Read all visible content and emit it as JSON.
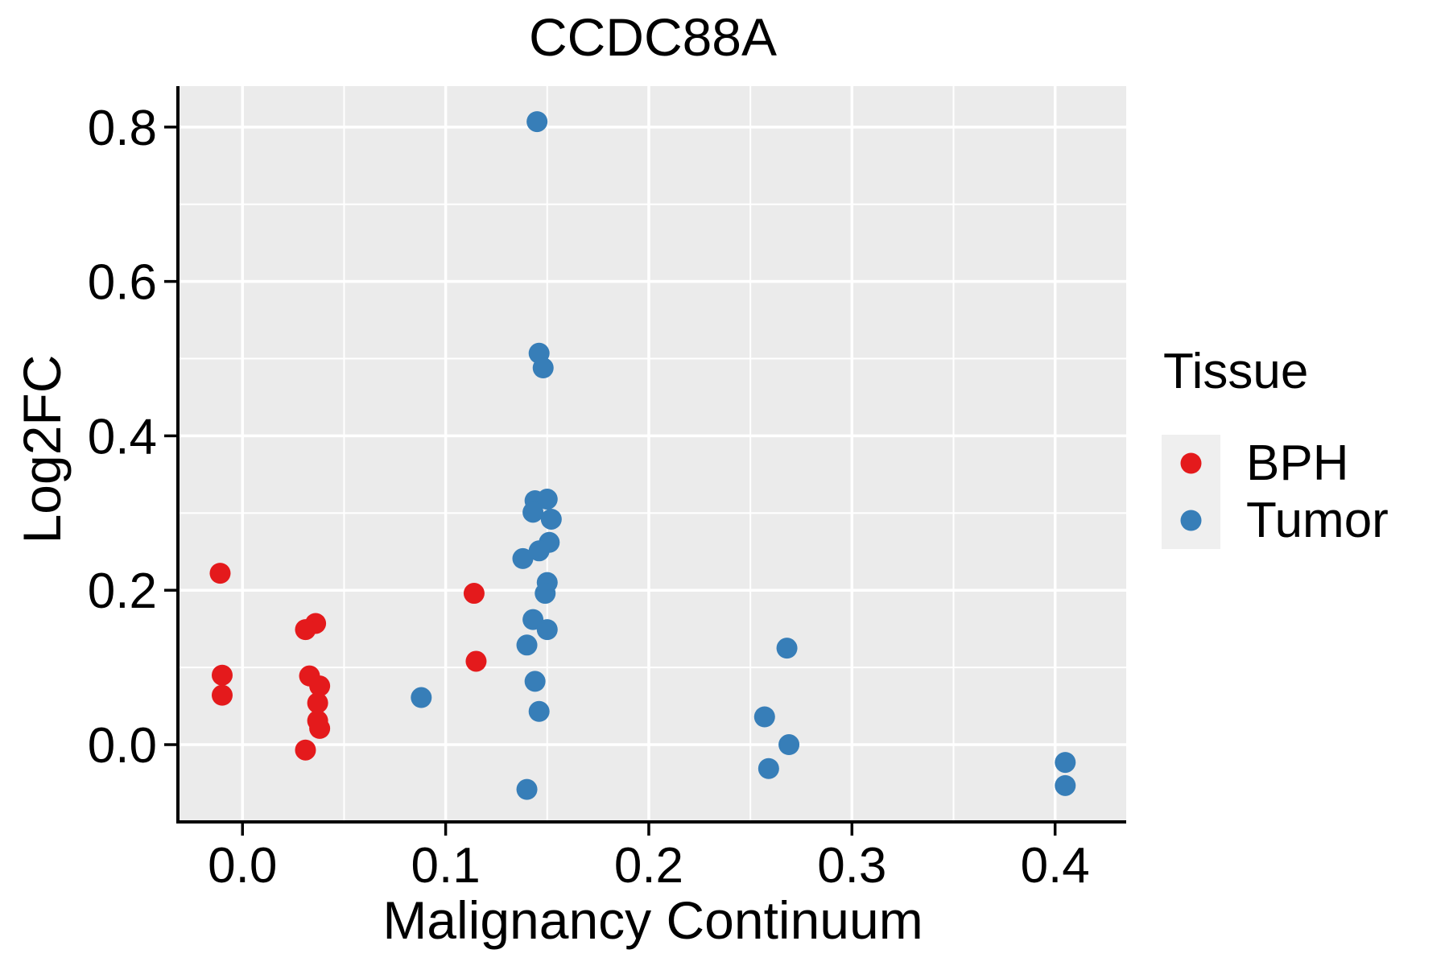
{
  "title": "CCDC88A",
  "axes": {
    "x_label": "Malignancy Continuum",
    "y_label": "Log2FC",
    "x_tick_labels": [
      "0.0",
      "0.1",
      "0.2",
      "0.3",
      "0.4"
    ],
    "y_tick_labels": [
      "0.0",
      "0.2",
      "0.4",
      "0.6",
      "0.8"
    ]
  },
  "legend": {
    "title": "Tissue",
    "items": [
      {
        "label": "BPH",
        "color": "#E41A1C"
      },
      {
        "label": "Tumor",
        "color": "#377EB8"
      }
    ]
  },
  "colors": {
    "figure_background": "#FFFFFF",
    "panel_background": "#EBEBEB",
    "gridline": "#FFFFFF",
    "axis_line": "#000000",
    "tick_mark": "#000000",
    "text": "#000000",
    "legend_key_background": "#EFEFEF",
    "bph_point": "#E41A1C",
    "tumor_point": "#377EB8"
  },
  "chart_data": {
    "type": "scatter",
    "title": "CCDC88A",
    "xlabel": "Malignancy Continuum",
    "ylabel": "Log2FC",
    "xlim": [
      -0.031,
      0.435
    ],
    "ylim": [
      -0.098,
      0.853
    ],
    "x_major_ticks": [
      0.0,
      0.1,
      0.2,
      0.3,
      0.4
    ],
    "y_major_ticks": [
      0.0,
      0.2,
      0.4,
      0.6,
      0.8
    ],
    "x_minor_ticks": [
      0.05,
      0.15,
      0.25,
      0.35
    ],
    "y_minor_ticks": [
      0.1,
      0.3,
      0.5,
      0.7
    ],
    "grid": true,
    "legend_position": "right",
    "marker_radius_px": 13,
    "series": [
      {
        "name": "BPH",
        "color": "#E41A1C",
        "points": [
          [
            -0.011,
            0.222
          ],
          [
            -0.01,
            0.09
          ],
          [
            -0.01,
            0.064
          ],
          [
            0.036,
            0.157
          ],
          [
            0.031,
            0.149
          ],
          [
            0.033,
            0.089
          ],
          [
            0.038,
            0.076
          ],
          [
            0.037,
            0.054
          ],
          [
            0.037,
            0.031
          ],
          [
            0.038,
            0.021
          ],
          [
            0.031,
            -0.007
          ],
          [
            0.114,
            0.196
          ],
          [
            0.115,
            0.108
          ]
        ]
      },
      {
        "name": "Tumor",
        "color": "#377EB8",
        "points": [
          [
            0.145,
            0.807
          ],
          [
            0.146,
            0.507
          ],
          [
            0.148,
            0.488
          ],
          [
            0.144,
            0.316
          ],
          [
            0.15,
            0.318
          ],
          [
            0.143,
            0.301
          ],
          [
            0.152,
            0.292
          ],
          [
            0.151,
            0.262
          ],
          [
            0.146,
            0.251
          ],
          [
            0.138,
            0.241
          ],
          [
            0.15,
            0.21
          ],
          [
            0.149,
            0.196
          ],
          [
            0.143,
            0.162
          ],
          [
            0.15,
            0.149
          ],
          [
            0.14,
            0.129
          ],
          [
            0.144,
            0.082
          ],
          [
            0.146,
            0.043
          ],
          [
            0.14,
            -0.058
          ],
          [
            0.088,
            0.061
          ],
          [
            0.268,
            0.125
          ],
          [
            0.257,
            0.036
          ],
          [
            0.269,
            0.0
          ],
          [
            0.259,
            -0.031
          ],
          [
            0.405,
            -0.023
          ],
          [
            0.405,
            -0.053
          ]
        ]
      }
    ]
  }
}
